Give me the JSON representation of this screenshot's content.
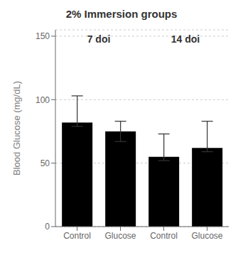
{
  "chart_data": {
    "type": "bar",
    "title": "2% Immersion groups",
    "ylabel": "Blood Glucose (mg/dL)",
    "categories": [
      "Control",
      "Glucose",
      "Control",
      "Glucose"
    ],
    "values": [
      82,
      75,
      55,
      62
    ],
    "error_upper": [
      21,
      8,
      18,
      21
    ],
    "error_lower": [
      3,
      8,
      3,
      3
    ],
    "annotations": [
      "7 doi",
      "14 doi"
    ],
    "ylim": [
      0,
      155
    ],
    "yticks": [
      0,
      50,
      100,
      150
    ],
    "grid": true
  }
}
